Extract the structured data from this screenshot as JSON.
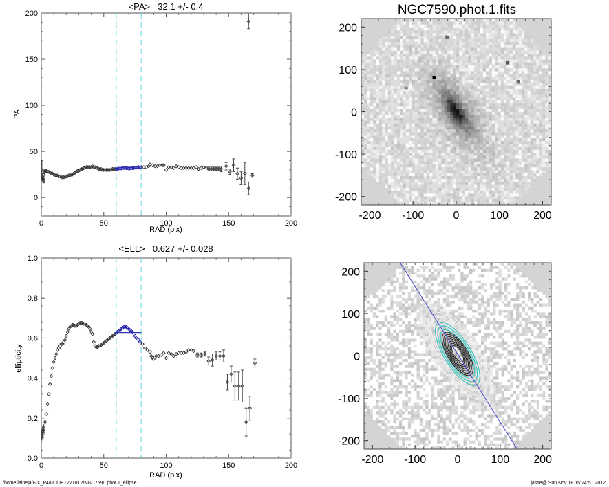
{
  "chart_data": [
    {
      "type": "scatter",
      "title": "<PA>=  32.1 +/-   0.4",
      "xlabel": "RAD (pix)",
      "ylabel": "PA",
      "xlim": [
        0,
        200
      ],
      "ylim": [
        -20,
        200
      ],
      "xticks": [
        "0",
        "50",
        "100",
        "150",
        "200"
      ],
      "yticks": [
        "0",
        "50",
        "100",
        "150",
        "200"
      ],
      "xtick_values": [
        0,
        50,
        100,
        150,
        200
      ],
      "ytick_values": [
        0,
        50,
        100,
        150,
        200
      ],
      "fit_range": [
        60,
        80
      ],
      "mean": 32.1,
      "mean_err": 0.4,
      "points": [
        [
          0.5,
          30,
          10
        ],
        [
          1,
          22,
          4
        ],
        [
          1.5,
          20,
          3
        ],
        [
          2,
          19,
          3
        ],
        [
          2.5,
          27,
          3
        ],
        [
          3,
          29,
          2
        ],
        [
          4,
          29,
          1
        ],
        [
          5,
          28,
          1
        ],
        [
          6,
          28,
          0
        ],
        [
          7,
          27,
          0
        ],
        [
          8,
          26,
          0
        ],
        [
          9,
          26,
          0
        ],
        [
          10,
          25,
          0
        ],
        [
          11,
          24,
          0
        ],
        [
          12,
          24,
          0
        ],
        [
          13,
          24,
          0
        ],
        [
          14,
          23,
          0
        ],
        [
          15,
          23,
          0
        ],
        [
          16,
          22,
          0
        ],
        [
          17,
          22,
          0
        ],
        [
          18,
          22,
          0
        ],
        [
          19,
          22,
          0
        ],
        [
          20,
          23,
          0
        ],
        [
          21,
          23,
          0
        ],
        [
          22,
          24,
          0
        ],
        [
          23,
          24,
          0
        ],
        [
          24,
          25,
          0
        ],
        [
          25,
          25,
          0
        ],
        [
          26,
          26,
          0
        ],
        [
          27,
          27,
          0
        ],
        [
          28,
          28,
          0
        ],
        [
          29,
          29,
          0
        ],
        [
          30,
          29,
          0
        ],
        [
          31,
          30,
          0
        ],
        [
          32,
          31,
          0
        ],
        [
          33,
          31,
          0
        ],
        [
          34,
          32,
          0
        ],
        [
          35,
          32,
          0
        ],
        [
          36,
          33,
          0
        ],
        [
          37,
          33,
          0
        ],
        [
          38,
          33,
          0
        ],
        [
          39,
          33,
          0
        ],
        [
          40,
          33,
          0
        ],
        [
          41,
          34,
          0
        ],
        [
          42,
          33,
          0
        ],
        [
          43,
          33,
          0
        ],
        [
          44,
          32,
          0
        ],
        [
          45,
          32,
          0
        ],
        [
          46,
          31,
          0
        ],
        [
          47,
          31,
          0
        ],
        [
          48,
          31,
          0
        ],
        [
          49,
          30,
          0
        ],
        [
          50,
          30,
          0
        ],
        [
          51,
          30,
          0
        ],
        [
          52,
          30,
          0
        ],
        [
          53,
          30,
          0
        ],
        [
          54,
          30,
          0
        ],
        [
          55,
          30,
          0
        ],
        [
          56,
          30,
          0
        ],
        [
          57,
          31,
          0
        ],
        [
          58,
          31,
          0
        ],
        [
          59,
          31,
          0
        ],
        [
          60,
          31,
          0
        ],
        [
          61,
          31,
          0
        ],
        [
          62,
          31.5,
          0
        ],
        [
          63,
          31.5,
          0
        ],
        [
          64,
          31.5,
          0
        ],
        [
          65,
          32,
          0
        ],
        [
          66,
          32,
          0
        ],
        [
          67,
          32,
          0
        ],
        [
          68,
          32,
          0
        ],
        [
          69,
          32,
          0
        ],
        [
          70,
          31.5,
          0
        ],
        [
          71,
          31.5,
          0
        ],
        [
          72,
          32,
          0
        ],
        [
          73,
          32,
          0
        ],
        [
          74,
          32,
          0
        ],
        [
          75,
          32.5,
          0
        ],
        [
          76,
          32.5,
          0
        ],
        [
          77,
          32.5,
          0
        ],
        [
          78,
          33,
          0
        ],
        [
          79,
          33,
          0
        ],
        [
          80,
          33,
          0
        ],
        [
          82,
          33,
          0
        ],
        [
          84,
          33,
          0
        ],
        [
          86,
          34,
          0
        ],
        [
          87,
          36,
          0
        ],
        [
          89,
          35,
          0
        ],
        [
          91,
          34,
          0
        ],
        [
          93,
          34,
          0
        ],
        [
          95,
          35,
          0
        ],
        [
          97,
          35,
          0
        ],
        [
          98,
          35,
          0
        ],
        [
          100,
          30,
          0
        ],
        [
          102,
          33,
          0
        ],
        [
          104,
          33,
          0
        ],
        [
          106,
          32,
          0
        ],
        [
          108,
          34,
          0
        ],
        [
          110,
          33,
          0
        ],
        [
          112,
          32,
          0
        ],
        [
          114,
          32,
          0
        ],
        [
          116,
          32,
          0
        ],
        [
          118,
          32,
          0
        ],
        [
          120,
          32,
          0
        ],
        [
          122,
          32,
          0
        ],
        [
          124,
          33,
          0
        ],
        [
          126,
          31,
          0
        ],
        [
          128,
          32,
          0
        ],
        [
          130,
          33,
          0
        ],
        [
          132,
          32,
          0
        ],
        [
          134,
          31,
          2
        ],
        [
          136,
          31,
          2
        ],
        [
          138,
          31,
          2
        ],
        [
          140,
          31,
          2
        ],
        [
          142,
          31,
          2
        ],
        [
          144,
          31,
          3
        ],
        [
          148,
          34,
          4
        ],
        [
          151,
          28,
          3
        ],
        [
          154,
          35,
          7
        ],
        [
          157,
          26,
          6
        ],
        [
          160,
          21,
          7
        ],
        [
          163,
          26,
          12
        ],
        [
          166,
          10,
          7
        ],
        [
          169,
          24,
          2
        ],
        [
          166,
          191,
          8
        ]
      ]
    },
    {
      "type": "scatter",
      "title": "<ELL>= 0.627 +/-  0.028",
      "xlabel": "RAD (pix)",
      "ylabel": "ellipticity",
      "xlim": [
        0,
        200
      ],
      "ylim": [
        0,
        1
      ],
      "xticks": [
        "0",
        "50",
        "100",
        "150",
        "200"
      ],
      "yticks": [
        "0.0",
        "0.2",
        "0.4",
        "0.6",
        "0.8",
        "1.0"
      ],
      "xtick_values": [
        0,
        50,
        100,
        150,
        200
      ],
      "ytick_values": [
        0,
        0.2,
        0.4,
        0.6,
        0.8,
        1.0
      ],
      "fit_range": [
        60,
        80
      ],
      "mean": 0.627,
      "mean_err": 0.028,
      "points": [
        [
          0.5,
          0.11,
          0.02
        ],
        [
          1,
          0.13,
          0.03
        ],
        [
          1.5,
          0.14,
          0.02
        ],
        [
          2,
          0.15,
          0.02
        ],
        [
          3,
          0.18,
          0.01
        ],
        [
          4,
          0.22,
          0
        ],
        [
          5,
          0.27,
          0
        ],
        [
          6,
          0.32,
          0
        ],
        [
          7,
          0.37,
          0
        ],
        [
          8,
          0.41,
          0
        ],
        [
          9,
          0.45,
          0
        ],
        [
          10,
          0.48,
          0
        ],
        [
          11,
          0.5,
          0
        ],
        [
          12,
          0.52,
          0
        ],
        [
          13,
          0.54,
          0
        ],
        [
          14,
          0.55,
          0
        ],
        [
          15,
          0.56,
          0
        ],
        [
          16,
          0.57,
          0
        ],
        [
          17,
          0.57,
          0
        ],
        [
          18,
          0.58,
          0
        ],
        [
          19,
          0.59,
          0
        ],
        [
          20,
          0.61,
          0
        ],
        [
          21,
          0.63,
          0
        ],
        [
          22,
          0.645,
          0
        ],
        [
          23,
          0.655,
          0
        ],
        [
          24,
          0.66,
          0
        ],
        [
          25,
          0.665,
          0
        ],
        [
          26,
          0.665,
          0
        ],
        [
          27,
          0.66,
          0
        ],
        [
          28,
          0.66,
          0
        ],
        [
          29,
          0.665,
          0
        ],
        [
          30,
          0.67,
          0
        ],
        [
          31,
          0.675,
          0
        ],
        [
          32,
          0.675,
          0
        ],
        [
          33,
          0.675,
          0
        ],
        [
          34,
          0.67,
          0
        ],
        [
          35,
          0.67,
          0
        ],
        [
          36,
          0.665,
          0
        ],
        [
          37,
          0.66,
          0
        ],
        [
          38,
          0.655,
          0
        ],
        [
          39,
          0.645,
          0
        ],
        [
          40,
          0.63,
          0
        ],
        [
          41,
          0.62,
          0
        ],
        [
          42,
          0.58,
          0
        ],
        [
          43,
          0.56,
          0
        ],
        [
          44,
          0.555,
          0
        ],
        [
          45,
          0.555,
          0
        ],
        [
          46,
          0.56,
          0
        ],
        [
          47,
          0.56,
          0
        ],
        [
          48,
          0.565,
          0
        ],
        [
          49,
          0.57,
          0
        ],
        [
          50,
          0.575,
          0
        ],
        [
          51,
          0.58,
          0
        ],
        [
          52,
          0.585,
          0
        ],
        [
          53,
          0.59,
          0
        ],
        [
          54,
          0.595,
          0
        ],
        [
          55,
          0.6,
          0
        ],
        [
          56,
          0.605,
          0
        ],
        [
          57,
          0.61,
          0
        ],
        [
          58,
          0.615,
          0
        ],
        [
          59,
          0.62,
          0
        ],
        [
          60,
          0.625,
          0
        ],
        [
          61,
          0.63,
          0
        ],
        [
          62,
          0.635,
          0
        ],
        [
          63,
          0.64,
          0
        ],
        [
          64,
          0.645,
          0
        ],
        [
          65,
          0.65,
          0
        ],
        [
          66,
          0.655,
          0
        ],
        [
          67,
          0.655,
          0
        ],
        [
          68,
          0.655,
          0
        ],
        [
          69,
          0.65,
          0
        ],
        [
          70,
          0.645,
          0
        ],
        [
          71,
          0.64,
          0
        ],
        [
          72,
          0.635,
          0
        ],
        [
          73,
          0.63,
          0
        ],
        [
          75,
          0.61,
          0
        ],
        [
          76,
          0.6,
          0
        ],
        [
          78,
          0.59,
          0
        ],
        [
          79,
          0.58,
          0
        ],
        [
          81,
          0.57,
          0
        ],
        [
          83,
          0.55,
          0
        ],
        [
          85,
          0.54,
          0
        ],
        [
          87,
          0.53,
          0
        ],
        [
          88,
          0.51,
          0
        ],
        [
          89,
          0.5,
          0
        ],
        [
          90,
          0.495,
          0
        ],
        [
          91,
          0.505,
          0
        ],
        [
          92,
          0.51,
          0
        ],
        [
          94,
          0.51,
          0
        ],
        [
          96,
          0.515,
          0
        ],
        [
          98,
          0.525,
          0
        ],
        [
          100,
          0.5,
          0
        ],
        [
          102,
          0.525,
          0
        ],
        [
          104,
          0.52,
          0
        ],
        [
          106,
          0.51,
          0
        ],
        [
          108,
          0.52,
          0
        ],
        [
          110,
          0.525,
          0
        ],
        [
          112,
          0.525,
          0
        ],
        [
          114,
          0.525,
          0
        ],
        [
          116,
          0.53,
          0
        ],
        [
          118,
          0.54,
          0
        ],
        [
          120,
          0.54,
          0
        ],
        [
          122,
          0.535,
          0
        ],
        [
          125,
          0.515,
          0.01
        ],
        [
          128,
          0.515,
          0.01
        ],
        [
          131,
          0.52,
          0.01
        ],
        [
          134,
          0.485,
          0.02
        ],
        [
          137,
          0.49,
          0.03
        ],
        [
          140,
          0.51,
          0.02
        ],
        [
          143,
          0.51,
          0.02
        ],
        [
          146,
          0.51,
          0.03
        ],
        [
          149,
          0.38,
          0.04
        ],
        [
          152,
          0.42,
          0.04
        ],
        [
          155,
          0.36,
          0.07
        ],
        [
          158,
          0.36,
          0.07
        ],
        [
          161,
          0.36,
          0.08
        ],
        [
          164,
          0.18,
          0.07
        ],
        [
          167,
          0.25,
          0.06
        ],
        [
          171,
          0.475,
          0.02
        ]
      ]
    }
  ],
  "images": {
    "top_title": "NGC7590.phot.1.fits",
    "ticks": [
      "-200",
      "-100",
      "0",
      "100",
      "200"
    ],
    "tick_values": [
      -200,
      -100,
      0,
      100,
      200
    ],
    "range": [
      -220,
      220
    ]
  },
  "colors": {
    "fit_region": "#7fe3e6",
    "fit_points": "#2222aa",
    "mean_line": "#3333bb",
    "major_axis_line": "#4444cc",
    "contour_cyan": "#3cc8c0"
  },
  "footer": {
    "path": "/home/laineja/FIX_P4/UUDET221012/NGC7590.phot.1_ellipse",
    "stamp": "jasse@  Sun Nov 18 15:24:51 2012"
  }
}
